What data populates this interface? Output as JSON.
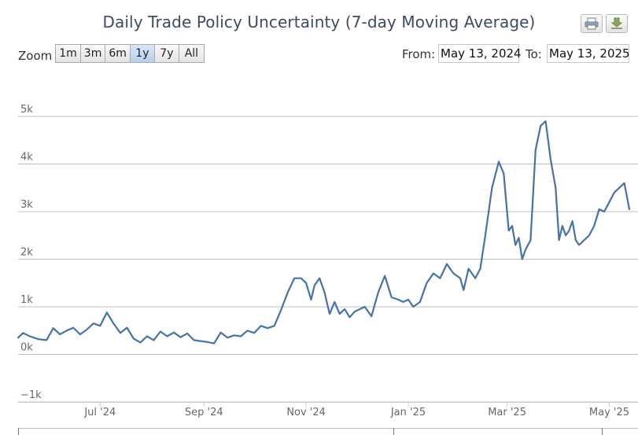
{
  "title": "Daily Trade Policy Uncertainty (7-day Moving Average)",
  "toolbar": {
    "print_icon": "print-icon",
    "download_icon": "download-icon"
  },
  "zoom": {
    "label": "Zoom",
    "buttons": [
      "1m",
      "3m",
      "6m",
      "1y",
      "7y",
      "All"
    ],
    "active": "1y"
  },
  "range": {
    "from_label": "From:",
    "from_value": "May 13, 2024",
    "to_label": "To:",
    "to_value": "May 13, 2025"
  },
  "colors": {
    "line": "#4572a7",
    "grid": "#c0c0c0",
    "zoom_active": "#c3d6f0"
  },
  "chart_data": {
    "type": "line",
    "title": "Daily Trade Policy Uncertainty (7-day Moving Average)",
    "xlabel": "",
    "ylabel": "",
    "x_range": [
      "2024-05-13",
      "2025-05-13"
    ],
    "ylim": [
      -1000,
      5000
    ],
    "y_ticks": [
      -1000,
      0,
      1000,
      2000,
      3000,
      4000,
      5000
    ],
    "y_tick_labels": [
      "−1k",
      "0k",
      "1k",
      "2k",
      "3k",
      "4k",
      "5k"
    ],
    "x_ticks": [
      "2024-07-01",
      "2024-09-01",
      "2024-11-01",
      "2025-01-01",
      "2025-03-01",
      "2025-05-01"
    ],
    "x_tick_labels": [
      "Jul '24",
      "Sep '24",
      "Nov '24",
      "Jan '25",
      "Mar '25",
      "May '25"
    ],
    "grid": "horizontal",
    "legend": "none",
    "series": [
      {
        "x": [
          "2024-05-13",
          "2024-05-16",
          "2024-05-20",
          "2024-05-25",
          "2024-05-30",
          "2024-06-03",
          "2024-06-07",
          "2024-06-11",
          "2024-06-15",
          "2024-06-19",
          "2024-06-23",
          "2024-06-27",
          "2024-07-01",
          "2024-07-05",
          "2024-07-09",
          "2024-07-13",
          "2024-07-17",
          "2024-07-21",
          "2024-07-25",
          "2024-07-29",
          "2024-08-02",
          "2024-08-06",
          "2024-08-10",
          "2024-08-14",
          "2024-08-18",
          "2024-08-22",
          "2024-08-26",
          "2024-08-30",
          "2024-09-03",
          "2024-09-07",
          "2024-09-11",
          "2024-09-15",
          "2024-09-19",
          "2024-09-23",
          "2024-09-27",
          "2024-10-01",
          "2024-10-05",
          "2024-10-09",
          "2024-10-13",
          "2024-10-17",
          "2024-10-21",
          "2024-10-25",
          "2024-10-29",
          "2024-11-01",
          "2024-11-04",
          "2024-11-06",
          "2024-11-09",
          "2024-11-12",
          "2024-11-15",
          "2024-11-18",
          "2024-11-21",
          "2024-11-24",
          "2024-11-27",
          "2024-11-30",
          "2024-12-03",
          "2024-12-06",
          "2024-12-10",
          "2024-12-14",
          "2024-12-18",
          "2024-12-22",
          "2024-12-26",
          "2024-12-29",
          "2025-01-01",
          "2025-01-04",
          "2025-01-08",
          "2025-01-12",
          "2025-01-16",
          "2025-01-20",
          "2025-01-24",
          "2025-01-28",
          "2025-02-01",
          "2025-02-03",
          "2025-02-06",
          "2025-02-10",
          "2025-02-13",
          "2025-02-16",
          "2025-02-20",
          "2025-02-24",
          "2025-02-27",
          "2025-03-02",
          "2025-03-04",
          "2025-03-06",
          "2025-03-08",
          "2025-03-10",
          "2025-03-12",
          "2025-03-15",
          "2025-03-18",
          "2025-03-21",
          "2025-03-24",
          "2025-03-27",
          "2025-03-30",
          "2025-04-01",
          "2025-04-03",
          "2025-04-05",
          "2025-04-07",
          "2025-04-09",
          "2025-04-11",
          "2025-04-13",
          "2025-04-16",
          "2025-04-19",
          "2025-04-22",
          "2025-04-25",
          "2025-04-28",
          "2025-05-01",
          "2025-05-04",
          "2025-05-07",
          "2025-05-10",
          "2025-05-13"
        ],
        "y": [
          350,
          450,
          380,
          320,
          300,
          550,
          420,
          500,
          560,
          420,
          520,
          650,
          600,
          880,
          650,
          450,
          560,
          330,
          250,
          380,
          300,
          480,
          380,
          460,
          360,
          440,
          300,
          280,
          260,
          230,
          460,
          350,
          400,
          380,
          500,
          450,
          600,
          550,
          600,
          930,
          1300,
          1600,
          1600,
          1500,
          1150,
          1450,
          1600,
          1300,
          850,
          1100,
          850,
          950,
          780,
          900,
          950,
          1000,
          800,
          1300,
          1650,
          1200,
          1150,
          1100,
          1150,
          1000,
          1100,
          1500,
          1700,
          1600,
          1900,
          1700,
          1600,
          1350,
          1800,
          1600,
          1800,
          2500,
          3500,
          4050,
          3800,
          2600,
          2700,
          2300,
          2450,
          2000,
          2200,
          2400,
          4300,
          4800,
          4900,
          4100,
          3500,
          2400,
          2700,
          2500,
          2600,
          2800,
          2400,
          2300,
          2400,
          2500,
          2700,
          3050,
          3000,
          3200,
          3400,
          3500,
          3600,
          3050
        ]
      }
    ]
  }
}
